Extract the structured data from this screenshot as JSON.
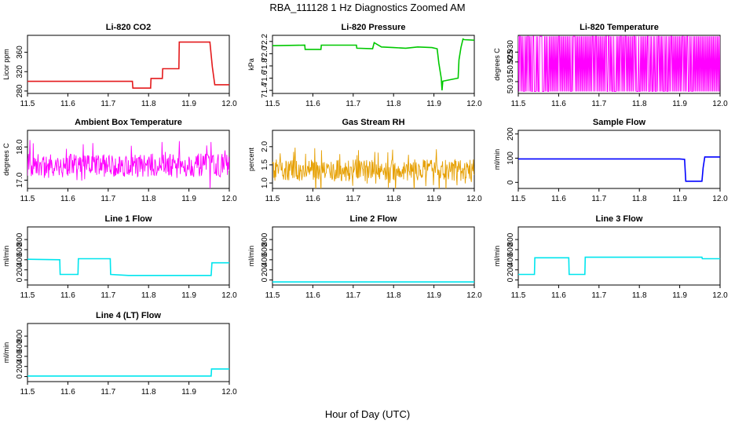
{
  "figure": {
    "suptitle": "RBA_111128  1 Hz Diagnostics Zoomed AM",
    "xlabel": "Hour of Day (UTC)"
  },
  "chart_data": [
    {
      "type": "line",
      "title": "Li-820 CO2",
      "ylabel": "Licor ppm",
      "color": "#e41a1c",
      "xlim": [
        11.5,
        12.0
      ],
      "ylim": [
        275,
        395
      ],
      "x_ticks": [
        "11.5",
        "11.6",
        "11.7",
        "11.8",
        "11.9",
        "12.0"
      ],
      "y_ticks": [
        "280",
        "320",
        "360"
      ],
      "series": [
        {
          "x": [
            11.5,
            11.76,
            11.761,
            11.805,
            11.806,
            11.834,
            11.835,
            11.875,
            11.876,
            11.952,
            11.958,
            11.964,
            12.0
          ],
          "y": [
            300,
            300,
            286,
            286,
            306,
            306,
            326,
            326,
            381,
            381,
            330,
            293,
            293
          ]
        }
      ]
    },
    {
      "type": "line",
      "title": "Li-820 Pressure",
      "ylabel": "kPa",
      "color": "#00c800",
      "xlim": [
        11.5,
        12.0
      ],
      "ylim": [
        71.35,
        72.3
      ],
      "x_ticks": [
        "11.5",
        "11.6",
        "11.7",
        "11.8",
        "11.9",
        "12.0"
      ],
      "y_ticks": [
        "71.4",
        "71.6",
        "71.8",
        "72.0",
        "72.2"
      ],
      "series": [
        {
          "x": [
            11.5,
            11.58,
            11.581,
            11.62,
            11.621,
            11.708,
            11.709,
            11.748,
            11.752,
            11.77,
            11.8,
            11.83,
            11.86,
            11.895,
            11.908,
            11.912,
            11.918,
            11.92,
            11.922,
            11.96,
            11.962,
            11.967,
            11.972,
            11.975,
            12.0
          ],
          "y": [
            72.13,
            72.14,
            72.07,
            72.07,
            72.14,
            72.14,
            72.09,
            72.08,
            72.18,
            72.11,
            72.1,
            72.09,
            72.11,
            72.1,
            72.08,
            71.85,
            71.6,
            71.4,
            71.55,
            71.6,
            71.9,
            72.1,
            72.24,
            72.23,
            72.22
          ]
        }
      ]
    },
    {
      "type": "line",
      "title": "Li-820 Temperature",
      "ylabel": "degrees C",
      "color": "#ff00ff",
      "xlim": [
        11.5,
        12.0
      ],
      "ylim": [
        50.909,
        50.9385
      ],
      "x_ticks": [
        "11.5",
        "11.6",
        "11.7",
        "11.8",
        "11.9",
        "12.0"
      ],
      "y_ticks": [
        "50.915",
        "50.925",
        "50.930"
      ],
      "series": [
        {
          "values_note_free": true,
          "x_range": [
            11.5,
            12.0
          ],
          "low": 50.91,
          "high": 50.938
        }
      ]
    },
    {
      "type": "line",
      "title": "Ambient Box Temperature",
      "ylabel": "degrees C",
      "color": "#ff00ff",
      "xlim": [
        11.5,
        12.0
      ],
      "ylim": [
        16.75,
        18.5
      ],
      "x_ticks": [
        "11.5",
        "11.6",
        "11.7",
        "11.8",
        "11.9",
        "12.0"
      ],
      "y_ticks": [
        "17.0",
        "18.0"
      ],
      "series": [
        {
          "x_range": [
            11.5,
            12.0
          ],
          "center": 17.45,
          "spread": 0.35
        }
      ]
    },
    {
      "type": "line",
      "title": "Gas Stream RH",
      "ylabel": "percent",
      "color": "#e69f00",
      "xlim": [
        11.5,
        12.0
      ],
      "ylim": [
        0.85,
        2.45
      ],
      "x_ticks": [
        "11.5",
        "11.6",
        "11.7",
        "11.8",
        "11.9",
        "12.0"
      ],
      "y_ticks": [
        "1.0",
        "1.5",
        "2.0"
      ],
      "series": [
        {
          "x_range": [
            11.5,
            12.0
          ],
          "center": 1.35,
          "spread": 0.3
        }
      ]
    },
    {
      "type": "line",
      "title": "Sample Flow",
      "ylabel": "ml/min",
      "color": "#0000ff",
      "xlim": [
        11.5,
        12.0
      ],
      "ylim": [
        -25,
        215
      ],
      "x_ticks": [
        "11.5",
        "11.6",
        "11.7",
        "11.8",
        "11.9",
        "12.0"
      ],
      "y_ticks": [
        "0",
        "100",
        "200"
      ],
      "series": [
        {
          "x": [
            11.5,
            11.54,
            11.62,
            11.66,
            11.9,
            11.912,
            11.915,
            11.955,
            11.958,
            11.962,
            12.0
          ],
          "y": [
            97,
            97,
            97,
            97,
            97,
            95,
            5,
            5,
            60,
            105,
            105
          ]
        }
      ]
    },
    {
      "type": "line",
      "title": "Line 1 Flow",
      "ylabel": "ml/min",
      "color": "#00e5ee",
      "xlim": [
        11.5,
        12.0
      ],
      "ylim": [
        -100,
        1050
      ],
      "x_ticks": [
        "11.5",
        "11.6",
        "11.7",
        "11.8",
        "11.9",
        "12.0"
      ],
      "y_ticks": [
        "0",
        "200",
        "400",
        "600",
        "800"
      ],
      "series": [
        {
          "x": [
            11.5,
            11.58,
            11.581,
            11.625,
            11.626,
            11.705,
            11.706,
            11.75,
            11.955,
            11.957,
            12.0
          ],
          "y": [
            410,
            400,
            110,
            110,
            420,
            420,
            110,
            90,
            90,
            340,
            340
          ]
        }
      ]
    },
    {
      "type": "line",
      "title": "Line 2 Flow",
      "ylabel": "ml/min",
      "color": "#00e5ee",
      "xlim": [
        11.5,
        12.0
      ],
      "ylim": [
        -100,
        1050
      ],
      "x_ticks": [
        "11.5",
        "11.6",
        "11.7",
        "11.8",
        "11.9",
        "12.0"
      ],
      "y_ticks": [
        "0",
        "200",
        "400",
        "600",
        "800"
      ],
      "series": [
        {
          "x": [
            11.5,
            12.0
          ],
          "y": [
            -40,
            -40
          ]
        }
      ]
    },
    {
      "type": "line",
      "title": "Line 3 Flow",
      "ylabel": "ml/min",
      "color": "#00e5ee",
      "xlim": [
        11.5,
        12.0
      ],
      "ylim": [
        -100,
        1050
      ],
      "x_ticks": [
        "11.5",
        "11.6",
        "11.7",
        "11.8",
        "11.9",
        "12.0"
      ],
      "y_ticks": [
        "0",
        "200",
        "400",
        "600",
        "800"
      ],
      "series": [
        {
          "x": [
            11.5,
            11.54,
            11.541,
            11.625,
            11.626,
            11.665,
            11.666,
            11.955,
            11.956,
            12.0
          ],
          "y": [
            110,
            110,
            440,
            440,
            110,
            110,
            450,
            450,
            420,
            420
          ]
        }
      ]
    },
    {
      "type": "line",
      "title": "Line 4 (LT) Flow",
      "ylabel": "ml/min",
      "color": "#00e5ee",
      "xlim": [
        11.5,
        12.0
      ],
      "ylim": [
        -100,
        1050
      ],
      "x_ticks": [
        "11.5",
        "11.6",
        "11.7",
        "11.8",
        "11.9",
        "12.0"
      ],
      "y_ticks": [
        "0",
        "200",
        "400",
        "600",
        "800"
      ],
      "series": [
        {
          "x": [
            11.5,
            11.955,
            11.956,
            12.0
          ],
          "y": [
            10,
            10,
            150,
            150
          ]
        }
      ]
    }
  ]
}
